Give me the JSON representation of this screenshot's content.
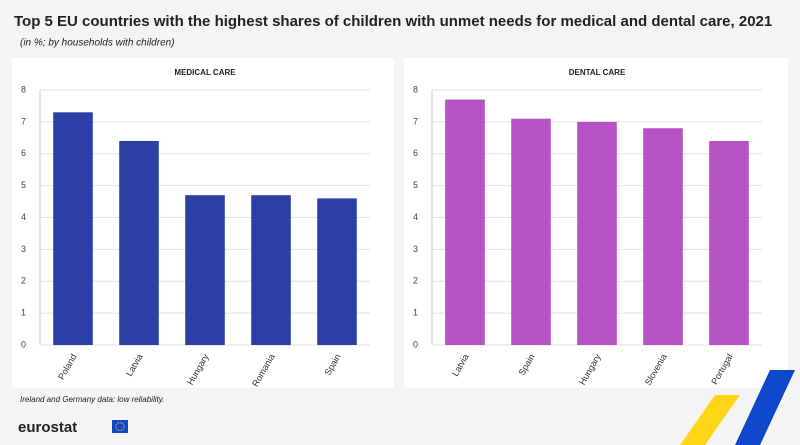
{
  "title": "Top 5 EU countries with the highest shares of children with unmet needs for medical and dental care, 2021",
  "subtitle": "(in %; by households with children)",
  "note": "Ireland and Germany data: low reliability.",
  "brand": "eurostat",
  "chart_data": [
    {
      "type": "bar",
      "title": "MEDICAL CARE",
      "categories": [
        "Poland",
        "Latvia",
        "Hungary",
        "Romania",
        "Spain"
      ],
      "values": [
        7.3,
        6.4,
        4.7,
        4.7,
        4.6
      ],
      "color": "#2b3fa6",
      "ylim": [
        0,
        8
      ],
      "yticks": [
        0,
        1,
        2,
        3,
        4,
        5,
        6,
        7,
        8
      ],
      "grid": true
    },
    {
      "type": "bar",
      "title": "DENTAL CARE",
      "categories": [
        "Latvia",
        "Spain",
        "Hungary",
        "Slovenia",
        "Portugal"
      ],
      "values": [
        7.7,
        7.1,
        7.0,
        6.8,
        6.4
      ],
      "color": "#b552c4",
      "ylim": [
        0,
        8
      ],
      "yticks": [
        0,
        1,
        2,
        3,
        4,
        5,
        6,
        7,
        8
      ],
      "grid": true
    }
  ]
}
